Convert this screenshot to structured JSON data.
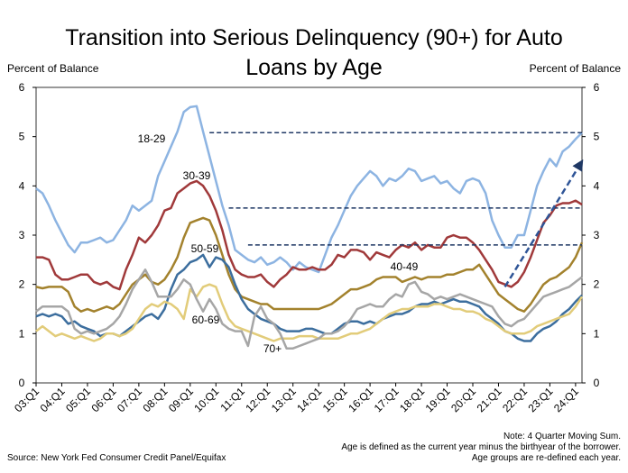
{
  "chart_data": {
    "type": "line",
    "title": "Transition into Serious Delinquency (90+) for Auto Loans by Age",
    "y_label": "Percent of Balance",
    "y2_label": "Percent of Balance",
    "source": "Source: New York Fed Consumer Credit Panel/Equifax",
    "notes": [
      "Note: 4 Quarter Moving Sum.",
      "Age is defined as the current year minus the birthyear of the borrower.",
      "Age groups are re-defined each year."
    ],
    "categories": [
      "03:Q1",
      null,
      null,
      null,
      "04:Q1",
      null,
      null,
      null,
      "05:Q1",
      null,
      null,
      null,
      "06:Q1",
      null,
      null,
      null,
      "07:Q1",
      null,
      null,
      null,
      "08:Q1",
      null,
      null,
      null,
      "09:Q1",
      null,
      null,
      null,
      "10:Q1",
      null,
      null,
      null,
      "11:Q1",
      null,
      null,
      null,
      "12:Q1",
      null,
      null,
      null,
      "13:Q1",
      null,
      null,
      null,
      "14:Q1",
      null,
      null,
      null,
      "15:Q1",
      null,
      null,
      null,
      "16:Q1",
      null,
      null,
      null,
      "17:Q1",
      null,
      null,
      null,
      "18:Q1",
      null,
      null,
      null,
      "19:Q1",
      null,
      null,
      null,
      "20:Q1",
      null,
      null,
      null,
      "21:Q1",
      null,
      null,
      null,
      "22:Q1",
      null,
      null,
      null,
      "23:Q1",
      null,
      null,
      null,
      "24:Q1",
      null
    ],
    "ylim": [
      0,
      6
    ],
    "yticks": [
      0,
      1,
      2,
      3,
      4,
      5,
      6
    ],
    "y2lim": [
      0,
      6
    ],
    "y2ticks": [
      0,
      1,
      2,
      3,
      4,
      5,
      6
    ],
    "grid": false,
    "series": [
      {
        "name": "18-29",
        "color": "#8db4e2",
        "values": [
          3.95,
          3.85,
          3.6,
          3.3,
          3.05,
          2.8,
          2.65,
          2.85,
          2.85,
          2.9,
          2.95,
          2.85,
          2.9,
          3.1,
          3.3,
          3.6,
          3.5,
          3.6,
          3.7,
          4.2,
          4.5,
          4.8,
          5.1,
          5.5,
          5.6,
          5.62,
          5.1,
          4.6,
          4.1,
          3.6,
          3.2,
          2.7,
          2.6,
          2.5,
          2.45,
          2.55,
          2.4,
          2.45,
          2.55,
          2.45,
          2.3,
          2.45,
          2.35,
          2.3,
          2.25,
          2.6,
          2.95,
          3.2,
          3.5,
          3.8,
          4.0,
          4.15,
          4.3,
          4.2,
          4.0,
          4.15,
          4.1,
          4.2,
          4.35,
          4.3,
          4.1,
          4.15,
          4.2,
          4.05,
          4.1,
          3.95,
          3.85,
          4.1,
          4.15,
          4.1,
          3.85,
          3.3,
          3.0,
          2.75,
          2.75,
          3.0,
          3.0,
          3.5,
          4.0,
          4.3,
          4.55,
          4.4,
          4.7,
          4.8,
          4.95,
          5.08
        ]
      },
      {
        "name": "30-39",
        "color": "#a0393a",
        "values": [
          2.55,
          2.55,
          2.5,
          2.2,
          2.1,
          2.1,
          2.15,
          2.2,
          2.2,
          2.05,
          2.0,
          2.05,
          1.95,
          1.9,
          2.3,
          2.6,
          2.95,
          2.85,
          3.0,
          3.2,
          3.5,
          3.55,
          3.85,
          3.95,
          4.05,
          4.1,
          4.0,
          3.8,
          3.5,
          3.1,
          2.6,
          2.3,
          2.2,
          2.15,
          2.15,
          2.2,
          2.05,
          1.95,
          2.1,
          2.2,
          2.35,
          2.3,
          2.3,
          2.35,
          2.3,
          2.3,
          2.4,
          2.6,
          2.55,
          2.7,
          2.7,
          2.65,
          2.5,
          2.65,
          2.6,
          2.55,
          2.7,
          2.8,
          2.75,
          2.85,
          2.7,
          2.8,
          2.75,
          2.75,
          2.95,
          3.0,
          2.95,
          2.95,
          2.85,
          2.7,
          2.5,
          2.3,
          2.05,
          2.0,
          1.95,
          2.05,
          2.25,
          2.55,
          2.9,
          3.25,
          3.4,
          3.6,
          3.65,
          3.65,
          3.7,
          3.62
        ]
      },
      {
        "name": "40-49",
        "color": "#a3822d",
        "values": [
          1.95,
          1.92,
          1.95,
          1.95,
          1.95,
          1.85,
          1.55,
          1.45,
          1.5,
          1.45,
          1.5,
          1.55,
          1.5,
          1.6,
          1.8,
          2.0,
          2.1,
          2.2,
          2.05,
          2.0,
          2.1,
          2.3,
          2.55,
          2.95,
          3.25,
          3.3,
          3.35,
          3.3,
          3.0,
          2.6,
          2.2,
          1.9,
          1.75,
          1.7,
          1.65,
          1.6,
          1.6,
          1.5,
          1.5,
          1.5,
          1.5,
          1.5,
          1.5,
          1.5,
          1.5,
          1.55,
          1.6,
          1.7,
          1.8,
          1.9,
          1.9,
          1.95,
          2.0,
          2.1,
          2.15,
          2.15,
          2.15,
          2.05,
          2.1,
          2.15,
          2.1,
          2.15,
          2.15,
          2.15,
          2.2,
          2.2,
          2.25,
          2.3,
          2.3,
          2.4,
          2.2,
          2.0,
          1.8,
          1.7,
          1.6,
          1.5,
          1.45,
          1.6,
          1.8,
          2.0,
          2.1,
          2.15,
          2.25,
          2.35,
          2.55,
          2.85
        ]
      },
      {
        "name": "50-59",
        "color": "#3c6e9e",
        "values": [
          1.35,
          1.4,
          1.35,
          1.4,
          1.35,
          1.2,
          1.25,
          1.15,
          1.1,
          1.05,
          0.95,
          1.0,
          1.0,
          0.95,
          1.05,
          1.15,
          1.25,
          1.35,
          1.4,
          1.3,
          1.5,
          1.9,
          2.2,
          2.3,
          2.45,
          2.5,
          2.6,
          2.35,
          2.55,
          2.5,
          2.35,
          2.0,
          1.7,
          1.5,
          1.4,
          1.3,
          1.25,
          1.2,
          1.1,
          1.05,
          1.05,
          1.05,
          1.1,
          1.1,
          1.05,
          1.0,
          1.0,
          1.1,
          1.2,
          1.25,
          1.25,
          1.2,
          1.25,
          1.2,
          1.3,
          1.35,
          1.4,
          1.4,
          1.45,
          1.55,
          1.6,
          1.6,
          1.65,
          1.6,
          1.65,
          1.7,
          1.65,
          1.65,
          1.6,
          1.55,
          1.4,
          1.3,
          1.2,
          1.05,
          1.0,
          0.9,
          0.85,
          0.85,
          1.0,
          1.1,
          1.15,
          1.25,
          1.4,
          1.5,
          1.65,
          1.78
        ]
      },
      {
        "name": "60-69",
        "color": "#e2cc7a",
        "values": [
          1.05,
          1.15,
          1.05,
          0.95,
          1.0,
          0.95,
          0.9,
          0.95,
          0.9,
          0.85,
          0.9,
          1.0,
          1.0,
          0.95,
          1.0,
          1.1,
          1.3,
          1.5,
          1.6,
          1.55,
          1.65,
          1.6,
          1.5,
          1.3,
          1.9,
          1.75,
          1.95,
          2.0,
          1.95,
          1.6,
          1.3,
          1.15,
          1.1,
          1.05,
          1.0,
          0.95,
          0.9,
          0.85,
          0.9,
          0.9,
          0.9,
          0.95,
          0.95,
          0.95,
          0.9,
          0.9,
          0.9,
          0.9,
          0.95,
          1.0,
          1.0,
          1.05,
          1.1,
          1.2,
          1.3,
          1.4,
          1.45,
          1.5,
          1.5,
          1.55,
          1.55,
          1.55,
          1.6,
          1.6,
          1.55,
          1.5,
          1.5,
          1.45,
          1.45,
          1.4,
          1.3,
          1.25,
          1.15,
          1.05,
          1.0,
          1.0,
          1.0,
          1.05,
          1.15,
          1.2,
          1.25,
          1.3,
          1.35,
          1.4,
          1.55,
          1.75
        ]
      },
      {
        "name": "70+",
        "color": "#a6a6a6",
        "values": [
          1.45,
          1.55,
          1.55,
          1.55,
          1.55,
          1.45,
          1.1,
          1.0,
          1.05,
          1.0,
          1.05,
          1.1,
          1.2,
          1.35,
          1.6,
          1.9,
          2.1,
          2.3,
          2.05,
          1.75,
          1.75,
          1.75,
          1.9,
          2.1,
          2.0,
          1.7,
          1.45,
          1.7,
          1.5,
          1.2,
          1.1,
          1.05,
          1.05,
          0.75,
          1.35,
          1.55,
          1.3,
          1.2,
          1.0,
          0.7,
          0.7,
          0.75,
          0.8,
          0.85,
          0.9,
          1.0,
          1.0,
          1.05,
          1.15,
          1.3,
          1.5,
          1.55,
          1.6,
          1.55,
          1.55,
          1.7,
          1.8,
          1.75,
          2.0,
          2.05,
          1.85,
          1.8,
          1.7,
          1.75,
          1.7,
          1.75,
          1.8,
          1.75,
          1.7,
          1.65,
          1.6,
          1.55,
          1.35,
          1.2,
          1.15,
          1.25,
          1.3,
          1.45,
          1.6,
          1.75,
          1.8,
          1.85,
          1.9,
          1.95,
          2.05,
          2.15
        ]
      }
    ],
    "reference_lines": [
      {
        "y": 5.08,
        "from": 27
      },
      {
        "y": 3.55,
        "from": 30
      },
      {
        "y": 2.8,
        "from": 33
      }
    ],
    "arrow": {
      "from": [
        73,
        1.95
      ],
      "to": [
        85,
        4.5
      ]
    }
  }
}
